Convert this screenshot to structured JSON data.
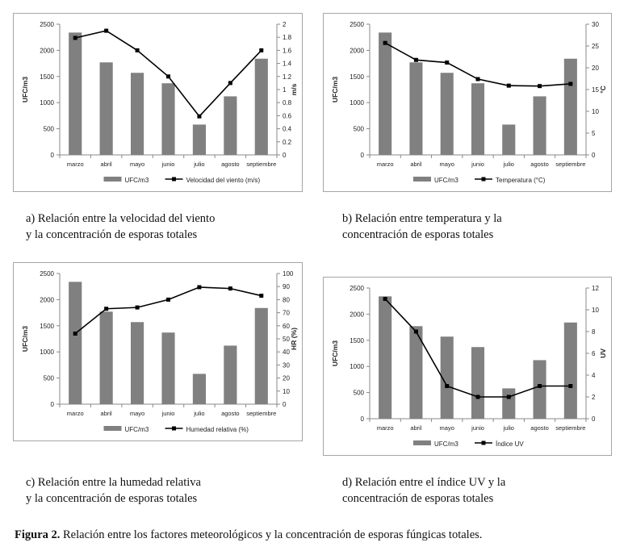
{
  "charts": {
    "a": {
      "caption": "a) Relación entre la velocidad del viento\n    y la concentración de esporas totales"
    },
    "b": {
      "caption": "b) Relación entre temperatura y la\n   concentración de esporas totales"
    },
    "c": {
      "caption": "c) Relación entre la humedad relativa\n    y la concentración de esporas totales"
    },
    "d": {
      "caption": "d) Relación entre el índice UV y la\n    concentración de esporas totales"
    }
  },
  "figure_caption": {
    "label": "Figura 2.",
    "text": " Relación entre los factores meteorológicos y la concentración de esporas fúngicas totales."
  },
  "chart_data": [
    {
      "id": "a",
      "type": "bar+line",
      "categories": [
        "marzo",
        "abril",
        "mayo",
        "junio",
        "julio",
        "agosto",
        "septiembre"
      ],
      "ylabel": "UFC/m3",
      "ylim": [
        0,
        2500
      ],
      "yticks": [
        0,
        500,
        1000,
        1500,
        2000,
        2500
      ],
      "y2label": "m/s",
      "y2lim": [
        0,
        2
      ],
      "y2ticks": [
        "0",
        "0.2",
        "0.4",
        "0.6",
        "0.8",
        "1",
        "1.2",
        "1.4",
        "1.6",
        "1.8",
        "2"
      ],
      "series": [
        {
          "name": "UFC/m3",
          "kind": "bar",
          "axis": "left",
          "color": "#808080",
          "values": [
            2340,
            1770,
            1570,
            1370,
            580,
            1120,
            1840
          ]
        },
        {
          "name": "Velocidad del viento (m/s)",
          "kind": "line",
          "axis": "right",
          "color": "#000000",
          "values": [
            1.79,
            1.9,
            1.6,
            1.2,
            0.59,
            1.1,
            1.6
          ]
        }
      ],
      "legend": "bottom"
    },
    {
      "id": "b",
      "type": "bar+line",
      "categories": [
        "marzo",
        "abril",
        "mayo",
        "junio",
        "julio",
        "agosto",
        "septiembre"
      ],
      "ylabel": "UFC/m3",
      "ylim": [
        0,
        2500
      ],
      "yticks": [
        0,
        500,
        1000,
        1500,
        2000,
        2500
      ],
      "y2label": "°C",
      "y2lim": [
        0,
        30
      ],
      "y2ticks": [
        "0",
        "5",
        "10",
        "15",
        "20",
        "25",
        "30"
      ],
      "series": [
        {
          "name": "UFC/m3",
          "kind": "bar",
          "axis": "left",
          "color": "#808080",
          "values": [
            2340,
            1770,
            1570,
            1370,
            580,
            1120,
            1840
          ]
        },
        {
          "name": "Temperatura (°C)",
          "kind": "line",
          "axis": "right",
          "color": "#000000",
          "values": [
            25.7,
            21.8,
            21.2,
            17.4,
            15.9,
            15.8,
            16.3
          ]
        }
      ],
      "legend": "bottom"
    },
    {
      "id": "c",
      "type": "bar+line",
      "categories": [
        "marzo",
        "abril",
        "mayo",
        "junio",
        "julio",
        "agosto",
        "septiembre"
      ],
      "ylabel": "UFC/m3",
      "ylim": [
        0,
        2500
      ],
      "yticks": [
        0,
        500,
        1000,
        1500,
        2000,
        2500
      ],
      "y2label": "HR (%)",
      "y2lim": [
        0,
        100
      ],
      "y2ticks": [
        "0",
        "10",
        "20",
        "30",
        "40",
        "50",
        "60",
        "70",
        "80",
        "90",
        "100"
      ],
      "series": [
        {
          "name": "UFC/m3",
          "kind": "bar",
          "axis": "left",
          "color": "#808080",
          "values": [
            2340,
            1770,
            1570,
            1370,
            580,
            1120,
            1840
          ]
        },
        {
          "name": "Humedad relativa (%)",
          "kind": "line",
          "axis": "right",
          "color": "#000000",
          "values": [
            54,
            73,
            74,
            80,
            89.5,
            88.5,
            83
          ]
        }
      ],
      "legend": "bottom"
    },
    {
      "id": "d",
      "type": "bar+line",
      "categories": [
        "marzo",
        "abril",
        "mayo",
        "junio",
        "julio",
        "agosto",
        "septiembre"
      ],
      "ylabel": "UFC/m3",
      "ylim": [
        0,
        2500
      ],
      "yticks": [
        0,
        500,
        1000,
        1500,
        2000,
        2500
      ],
      "y2label": "UV",
      "y2lim": [
        0,
        12
      ],
      "y2ticks": [
        "0",
        "2",
        "4",
        "6",
        "8",
        "10",
        "12"
      ],
      "series": [
        {
          "name": "UFC/m3",
          "kind": "bar",
          "axis": "left",
          "color": "#808080",
          "values": [
            2340,
            1770,
            1570,
            1370,
            580,
            1120,
            1840
          ]
        },
        {
          "name": "Índice UV",
          "kind": "line",
          "axis": "right",
          "color": "#000000",
          "values": [
            11,
            8,
            3,
            2,
            2,
            3,
            3
          ]
        }
      ],
      "legend": "bottom"
    }
  ]
}
